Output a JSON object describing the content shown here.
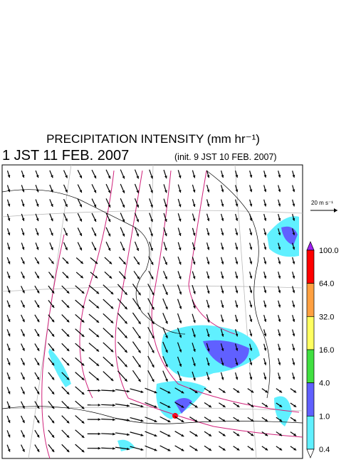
{
  "header": {
    "title": "PRECIPITATION INTENSITY (mm hr⁻¹)",
    "valid_time": "1 JST 11 FEB. 2007",
    "init_time": "(init. 9 JST 10 FEB. 2007)"
  },
  "vector_key": {
    "label": "20 m s⁻¹"
  },
  "colorbar": {
    "levels": [
      "100.0",
      "64.0",
      "32.0",
      "16.0",
      "4.0",
      "1.0",
      "0.4"
    ],
    "colors": [
      "#a020f0",
      "#ff0000",
      "#ffa040",
      "#ffff60",
      "#40e040",
      "#6060ff",
      "#60f0ff",
      "#ffffff"
    ]
  }
}
